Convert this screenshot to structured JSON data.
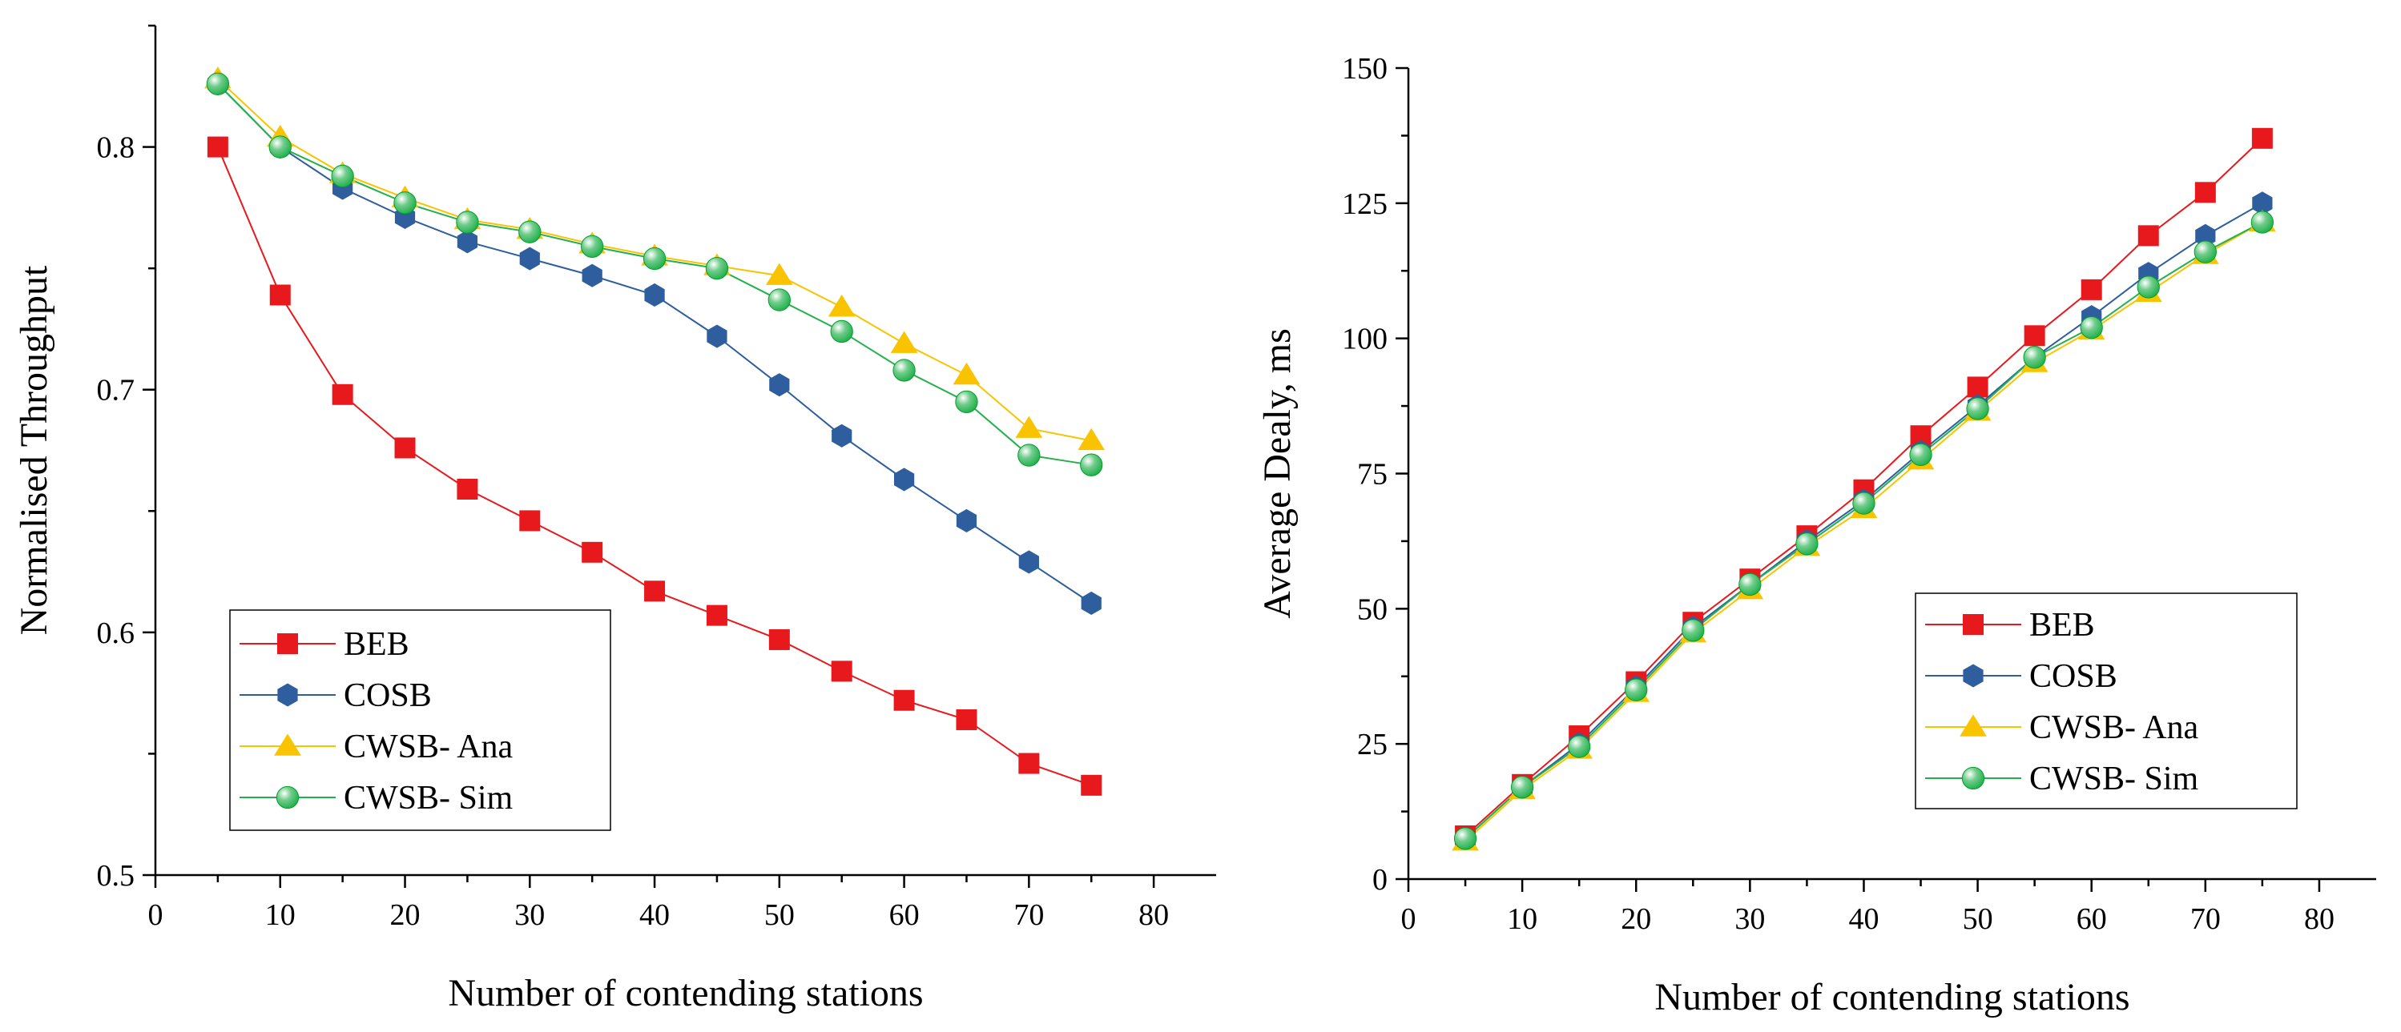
{
  "chart_data": [
    {
      "type": "line",
      "xlabel": "Number of contending stations",
      "ylabel": "Normalised Throughput",
      "xlim": [
        0,
        85
      ],
      "ylim": [
        0.5,
        0.85
      ],
      "xticks": [
        "0",
        "10",
        "20",
        "30",
        "40",
        "50",
        "60",
        "70",
        "80"
      ],
      "yticks": [
        "0.5",
        "0.6",
        "0.7",
        "0.8"
      ],
      "grid": false,
      "legend_position": "bottom-left",
      "x": [
        5,
        10,
        15,
        20,
        25,
        30,
        35,
        40,
        45,
        50,
        55,
        60,
        65,
        70,
        75
      ],
      "series": [
        {
          "name": "BEB",
          "color": "#e8191d",
          "marker": "square",
          "values": [
            0.8,
            0.739,
            0.698,
            0.676,
            0.659,
            0.646,
            0.633,
            0.617,
            0.607,
            0.597,
            0.584,
            0.572,
            0.564,
            0.546,
            0.537
          ]
        },
        {
          "name": "COSB",
          "color": "#2e5e9e",
          "marker": "hexagon",
          "values": [
            0.826,
            0.8,
            0.783,
            0.771,
            0.761,
            0.754,
            0.747,
            0.739,
            0.722,
            0.702,
            0.681,
            0.663,
            0.646,
            0.629,
            0.612
          ]
        },
        {
          "name": "CWSB- Ana",
          "color": "#f9c300",
          "marker": "triangle",
          "values": [
            0.828,
            0.804,
            0.789,
            0.779,
            0.77,
            0.766,
            0.76,
            0.755,
            0.751,
            0.747,
            0.734,
            0.719,
            0.706,
            0.684,
            0.679
          ]
        },
        {
          "name": "CWSB- Sim",
          "color": "#23b14d",
          "marker": "sphere",
          "values": [
            0.826,
            0.8,
            0.788,
            0.777,
            0.769,
            0.765,
            0.759,
            0.754,
            0.75,
            0.737,
            0.724,
            0.708,
            0.695,
            0.673,
            0.669
          ]
        }
      ]
    },
    {
      "type": "line",
      "xlabel": "Number of contending stations",
      "ylabel": "Average Dealy, ms",
      "xlim": [
        0,
        85
      ],
      "ylim": [
        0,
        150
      ],
      "xticks": [
        "0",
        "10",
        "20",
        "30",
        "40",
        "50",
        "60",
        "70",
        "80"
      ],
      "yticks": [
        "0",
        "25",
        "50",
        "75",
        "100",
        "125",
        "150"
      ],
      "grid": false,
      "legend_position": "bottom-right",
      "x": [
        5,
        10,
        15,
        20,
        25,
        30,
        35,
        40,
        45,
        50,
        55,
        60,
        65,
        70,
        75
      ],
      "series": [
        {
          "name": "BEB",
          "color": "#e8191d",
          "marker": "square",
          "values": [
            8,
            17.5,
            26.5,
            36.5,
            47.5,
            55.5,
            63.5,
            72,
            82,
            91,
            100.5,
            109,
            119,
            127,
            137
          ]
        },
        {
          "name": "COSB",
          "color": "#2e5e9e",
          "marker": "hexagon",
          "values": [
            7.5,
            17,
            25,
            35.5,
            46.5,
            54.5,
            62.5,
            70,
            79,
            87.5,
            96.5,
            104,
            112,
            119,
            125
          ]
        },
        {
          "name": "CWSB- Ana",
          "color": "#f9c300",
          "marker": "triangle",
          "values": [
            7,
            16.5,
            24,
            34.5,
            45.5,
            53.5,
            61.5,
            68.5,
            77.5,
            86.5,
            95.5,
            101.5,
            108.5,
            115.5,
            121.5
          ]
        },
        {
          "name": "CWSB- Sim",
          "color": "#23b14d",
          "marker": "sphere",
          "values": [
            7.5,
            17,
            24.5,
            35,
            46,
            54.5,
            62,
            69.5,
            78.5,
            87,
            96.5,
            102,
            109.5,
            116,
            121.5
          ]
        }
      ]
    }
  ]
}
